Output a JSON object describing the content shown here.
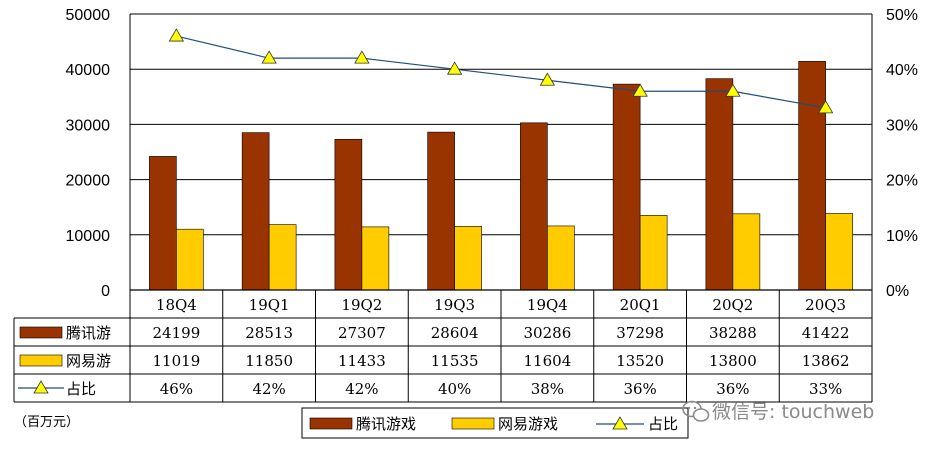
{
  "unit_label": "（百万元）",
  "watermark": "微信号: touchweb",
  "colors": {
    "tencent": "#993300",
    "netease": "#FFCC00",
    "ratio_line": "#1F4E79",
    "marker": "#FFFF00"
  },
  "chart_data": {
    "type": "bar",
    "categories": [
      "18Q4",
      "19Q1",
      "19Q2",
      "19Q3",
      "19Q4",
      "20Q1",
      "20Q2",
      "20Q3"
    ],
    "series": [
      {
        "name": "腾讯游戏",
        "table_label": "腾讯游",
        "kind": "bar",
        "axis": "left",
        "values": [
          24199,
          28513,
          27307,
          28604,
          30286,
          37298,
          38288,
          41422
        ]
      },
      {
        "name": "网易游戏",
        "table_label": "网易游",
        "kind": "bar",
        "axis": "left",
        "values": [
          11019,
          11850,
          11433,
          11535,
          11604,
          13520,
          13800,
          13862
        ]
      },
      {
        "name": "占比",
        "table_label": "占比",
        "kind": "line",
        "axis": "right",
        "values": [
          46,
          42,
          42,
          40,
          38,
          36,
          36,
          33
        ],
        "labels": [
          "46%",
          "42%",
          "42%",
          "40%",
          "38%",
          "36%",
          "36%",
          "33%"
        ]
      }
    ],
    "y_left": {
      "range": [
        0,
        50000
      ],
      "ticks": [
        "0",
        "10000",
        "20000",
        "30000",
        "40000",
        "50000"
      ]
    },
    "y_right": {
      "range": [
        0,
        50
      ],
      "ticks": [
        "0%",
        "10%",
        "20%",
        "30%",
        "40%",
        "50%"
      ]
    },
    "grid": true,
    "legend": {
      "placement": "bottom-center",
      "entries": [
        "腾讯游戏",
        "网易游戏",
        "占比"
      ]
    },
    "data_table": true
  }
}
